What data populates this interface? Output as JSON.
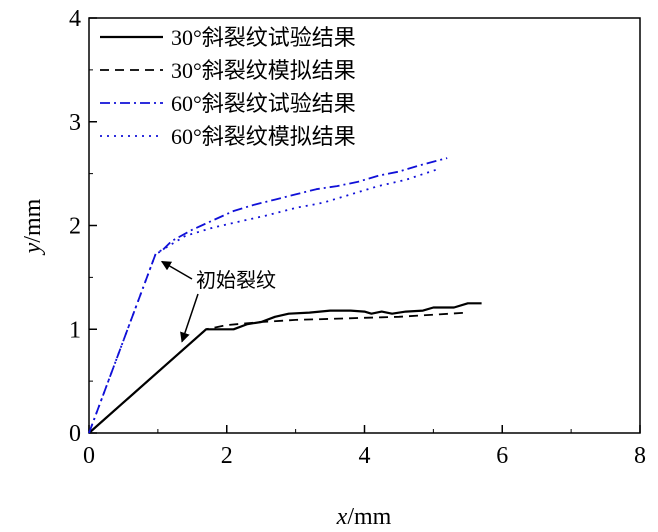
{
  "chart_data": {
    "type": "line",
    "xlabel_italic": "x",
    "xlabel_unit": "/mm",
    "ylabel_italic": "y",
    "ylabel_unit": "/mm",
    "xlim": [
      0,
      8
    ],
    "ylim": [
      0,
      4
    ],
    "xticks": [
      0,
      2,
      4,
      6,
      8
    ],
    "yticks": [
      0,
      1,
      2,
      3,
      4
    ],
    "grid": false,
    "legend_position": "top-right",
    "series": [
      {
        "name": "30°斜裂纹试验结果",
        "color": "#000000",
        "style": "solid",
        "x": [
          0,
          1.7,
          1.75,
          2.1,
          2.3,
          2.5,
          2.7,
          2.9,
          3.2,
          3.5,
          3.8,
          4.0,
          4.1,
          4.25,
          4.4,
          4.6,
          4.85,
          5.0,
          5.3,
          5.5,
          5.7
        ],
        "y": [
          0,
          1.0,
          1.0,
          1.0,
          1.05,
          1.07,
          1.12,
          1.15,
          1.16,
          1.18,
          1.18,
          1.17,
          1.15,
          1.17,
          1.15,
          1.17,
          1.18,
          1.21,
          1.21,
          1.25,
          1.25
        ]
      },
      {
        "name": "30°斜裂纹模拟结果",
        "color": "#000000",
        "style": "dashed",
        "x": [
          0,
          1.7,
          2.0,
          2.5,
          3.0,
          3.5,
          4.0,
          4.5,
          5.0,
          5.5
        ],
        "y": [
          0,
          1.0,
          1.04,
          1.07,
          1.09,
          1.1,
          1.11,
          1.12,
          1.14,
          1.16
        ]
      },
      {
        "name": "60°斜裂纹试验结果",
        "color": "#1010d8",
        "style": "dashdot",
        "x": [
          0,
          0.97,
          1.05,
          1.2,
          1.5,
          1.8,
          2.1,
          2.4,
          2.7,
          3.0,
          3.3,
          3.6,
          3.9,
          4.2,
          4.5,
          4.8,
          5.2
        ],
        "y": [
          0,
          1.73,
          1.75,
          1.85,
          1.96,
          2.05,
          2.14,
          2.2,
          2.25,
          2.3,
          2.35,
          2.38,
          2.42,
          2.48,
          2.52,
          2.58,
          2.65
        ]
      },
      {
        "name": "60°斜裂纹模拟结果",
        "color": "#1010d8",
        "style": "dotted",
        "x": [
          0,
          0.97,
          1.1,
          1.4,
          1.8,
          2.2,
          2.6,
          3.0,
          3.4,
          3.8,
          4.2,
          4.6,
          5.1
        ],
        "y": [
          0,
          1.73,
          1.78,
          1.9,
          1.98,
          2.04,
          2.1,
          2.17,
          2.22,
          2.3,
          2.38,
          2.44,
          2.55
        ]
      }
    ],
    "annotation": {
      "text": "初始裂纹",
      "targets": [
        [
          0.97,
          1.73
        ],
        [
          1.35,
          0.9
        ]
      ]
    }
  }
}
